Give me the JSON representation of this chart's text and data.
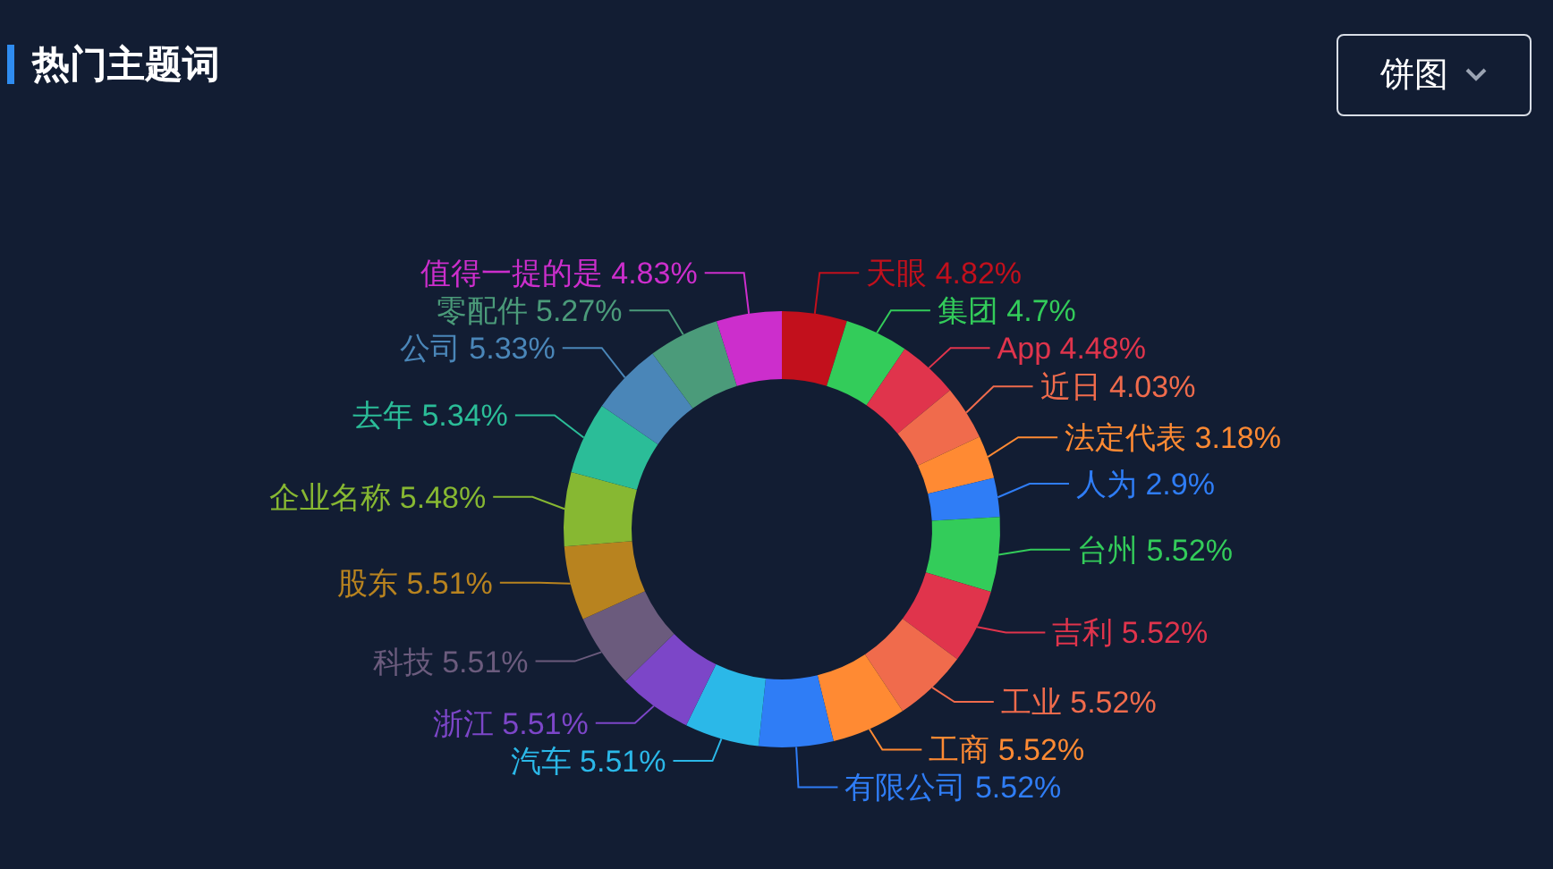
{
  "chart_data": {
    "type": "donut",
    "title": "热门主题词",
    "annotations": [
      "饼图"
    ],
    "categories": [
      "天眼",
      "集团",
      "App",
      "近日",
      "法定代表",
      "人为",
      "台州",
      "吉利",
      "工业",
      "工商",
      "有限公司",
      "汽车",
      "浙江",
      "科技",
      "股东",
      "企业名称",
      "去年",
      "公司",
      "零配件",
      "值得一提的是"
    ],
    "values": [
      4.82,
      4.7,
      4.48,
      4.03,
      3.18,
      2.9,
      5.52,
      5.52,
      5.52,
      5.52,
      5.52,
      5.51,
      5.51,
      5.51,
      5.51,
      5.48,
      5.34,
      5.33,
      5.27,
      4.83
    ],
    "value_labels": [
      "4.82%",
      "4.7%",
      "4.48%",
      "4.03%",
      "3.18%",
      "2.9%",
      "5.52%",
      "5.52%",
      "5.52%",
      "5.52%",
      "5.52%",
      "5.51%",
      "5.51%",
      "5.51%",
      "5.51%",
      "5.48%",
      "5.34%",
      "5.33%",
      "5.27%",
      "4.83%"
    ],
    "colors": [
      "#c2101c",
      "#33cc5a",
      "#e0344c",
      "#f06b4c",
      "#ff8a33",
      "#2f7df6",
      "#33cc5a",
      "#e0344c",
      "#f06b4c",
      "#ff8a33",
      "#2f7df6",
      "#2bb8e8",
      "#7c46c8",
      "#6b5b7d",
      "#b8831f",
      "#87b832",
      "#2bbd98",
      "#4a86b8",
      "#4b9b7a",
      "#cc2ecc"
    ],
    "data_labels": true
  }
}
